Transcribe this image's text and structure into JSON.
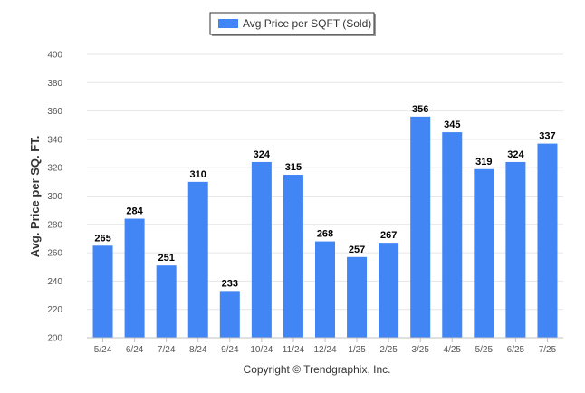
{
  "chart_data": {
    "type": "bar",
    "categories": [
      "5/24",
      "6/24",
      "7/24",
      "8/24",
      "9/24",
      "10/24",
      "11/24",
      "12/24",
      "1/25",
      "2/25",
      "3/25",
      "4/25",
      "5/25",
      "6/25",
      "7/25"
    ],
    "series": [
      {
        "name": "Avg Price per SQFT (Sold)",
        "values": [
          265,
          284,
          251,
          310,
          233,
          324,
          315,
          268,
          257,
          267,
          356,
          345,
          319,
          324,
          337
        ],
        "color": "#4285f4"
      }
    ],
    "ylabel": "Avg. Price per SQ. FT.",
    "xlabel": "",
    "ylim": [
      200,
      400
    ],
    "yticks": [
      200,
      220,
      240,
      260,
      280,
      300,
      320,
      340,
      360,
      380,
      400
    ],
    "grid": true,
    "legend_position": "top-center",
    "data_labels": true
  },
  "footer": {
    "copyright": "Copyright © Trendgraphix, Inc."
  }
}
